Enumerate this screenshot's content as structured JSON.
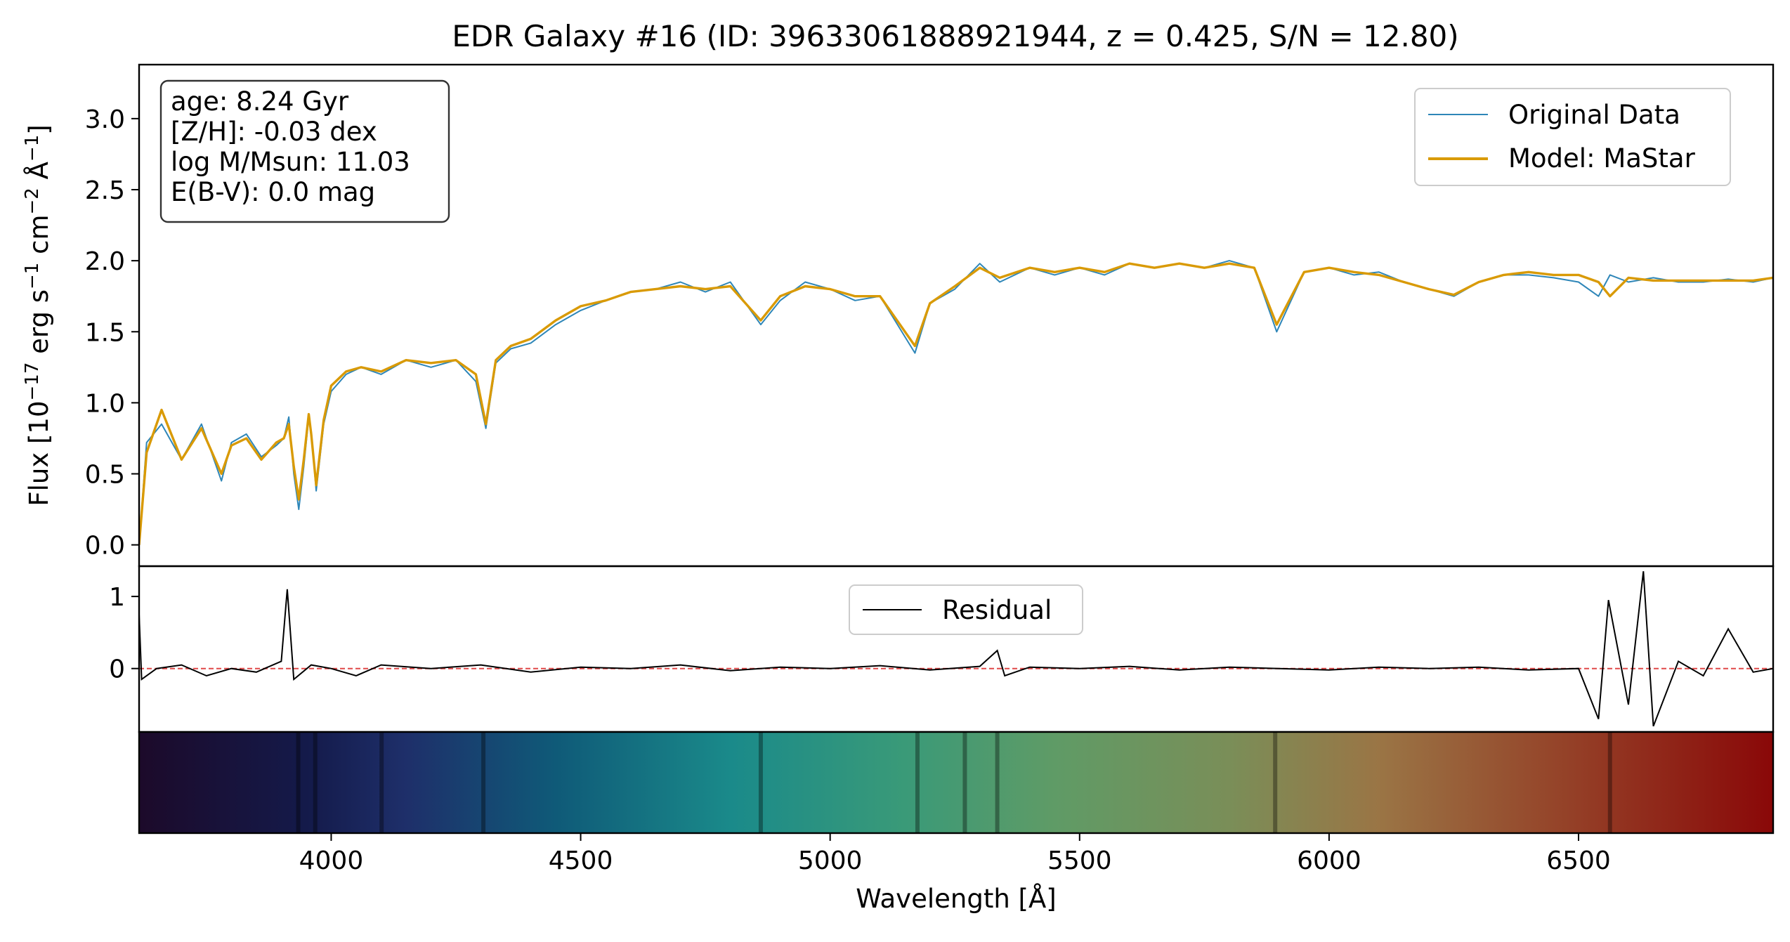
{
  "title": "EDR Galaxy #16 (ID: 39633061888921944, z = 0.425, S/N = 12.80)",
  "info_box": [
    "age: 8.24 Gyr",
    "[Z/H]: -0.03 dex",
    "log M/Msun: 11.03",
    "E(B-V): 0.0 mag"
  ],
  "colors": {
    "data": "#2e86b8",
    "model": "#d99a05",
    "residual": "#000000",
    "zero_line": "#e04848"
  },
  "chart_data": [
    {
      "type": "line",
      "panel": "spectrum",
      "ylabel": "Flux [10^-17 erg s^-1 cm^-2 Å^-1]",
      "ylabel_parts": {
        "pre": "Flux [10",
        "e1": "−17",
        "m1": " erg s",
        "e2": "−1",
        "m2": " cm",
        "e3": "−2",
        "m3": " Å",
        "e4": "−1",
        "post": "]"
      },
      "xlim": [
        3615,
        6890
      ],
      "ylim": [
        -0.15,
        3.38
      ],
      "yticks": [
        0.0,
        0.5,
        1.0,
        1.5,
        2.0,
        2.5,
        3.0
      ],
      "ytick_labels": [
        "0.0",
        "0.5",
        "1.0",
        "1.5",
        "2.0",
        "2.5",
        "3.0"
      ],
      "legend": {
        "position": "upper right",
        "entries": [
          "Original Data",
          "Model: MaStar"
        ]
      },
      "series": [
        {
          "name": "Original Data",
          "x": [
            3615,
            3630,
            3660,
            3700,
            3740,
            3780,
            3800,
            3830,
            3860,
            3890,
            3905,
            3915,
            3925,
            3935,
            3945,
            3955,
            3960,
            3970,
            3985,
            4000,
            4030,
            4060,
            4100,
            4150,
            4200,
            4250,
            4290,
            4310,
            4330,
            4360,
            4400,
            4450,
            4500,
            4550,
            4600,
            4650,
            4700,
            4750,
            4800,
            4861,
            4900,
            4950,
            5000,
            5050,
            5100,
            5170,
            5200,
            5250,
            5300,
            5340,
            5400,
            5450,
            5500,
            5550,
            5600,
            5650,
            5700,
            5750,
            5800,
            5850,
            5895,
            5950,
            6000,
            6050,
            6100,
            6150,
            6200,
            6250,
            6300,
            6350,
            6400,
            6450,
            6500,
            6540,
            6563,
            6600,
            6650,
            6700,
            6750,
            6800,
            6850,
            6890
          ],
          "y": [
            0.0,
            0.72,
            0.85,
            0.6,
            0.85,
            0.45,
            0.72,
            0.78,
            0.62,
            0.7,
            0.75,
            0.9,
            0.5,
            0.25,
            0.55,
            0.9,
            0.8,
            0.38,
            0.85,
            1.08,
            1.2,
            1.25,
            1.2,
            1.3,
            1.25,
            1.3,
            1.15,
            0.82,
            1.28,
            1.38,
            1.42,
            1.55,
            1.65,
            1.72,
            1.78,
            1.8,
            1.85,
            1.78,
            1.85,
            1.55,
            1.72,
            1.85,
            1.8,
            1.72,
            1.75,
            1.35,
            1.7,
            1.8,
            1.98,
            1.85,
            1.95,
            1.9,
            1.95,
            1.9,
            1.98,
            1.95,
            1.98,
            1.95,
            2.0,
            1.95,
            1.5,
            1.92,
            1.95,
            1.9,
            1.92,
            1.85,
            1.8,
            1.75,
            1.85,
            1.9,
            1.9,
            1.88,
            1.85,
            1.75,
            1.9,
            1.85,
            1.88,
            1.85,
            1.85,
            1.87,
            1.85,
            1.88
          ]
        },
        {
          "name": "Model: MaStar",
          "x": [
            3615,
            3630,
            3660,
            3700,
            3740,
            3780,
            3800,
            3830,
            3860,
            3890,
            3905,
            3915,
            3925,
            3935,
            3945,
            3955,
            3960,
            3970,
            3985,
            4000,
            4030,
            4060,
            4100,
            4150,
            4200,
            4250,
            4290,
            4310,
            4330,
            4360,
            4400,
            4450,
            4500,
            4550,
            4600,
            4650,
            4700,
            4750,
            4800,
            4861,
            4900,
            4950,
            5000,
            5050,
            5100,
            5170,
            5200,
            5250,
            5300,
            5340,
            5400,
            5450,
            5500,
            5550,
            5600,
            5650,
            5700,
            5750,
            5800,
            5850,
            5895,
            5950,
            6000,
            6050,
            6100,
            6150,
            6200,
            6250,
            6300,
            6350,
            6400,
            6450,
            6500,
            6540,
            6563,
            6600,
            6650,
            6700,
            6750,
            6800,
            6850,
            6890
          ],
          "y": [
            0.0,
            0.65,
            0.95,
            0.6,
            0.82,
            0.5,
            0.7,
            0.75,
            0.6,
            0.72,
            0.75,
            0.85,
            0.55,
            0.32,
            0.6,
            0.92,
            0.78,
            0.42,
            0.88,
            1.12,
            1.22,
            1.25,
            1.22,
            1.3,
            1.28,
            1.3,
            1.2,
            0.85,
            1.3,
            1.4,
            1.45,
            1.58,
            1.68,
            1.72,
            1.78,
            1.8,
            1.82,
            1.8,
            1.82,
            1.58,
            1.75,
            1.82,
            1.8,
            1.75,
            1.75,
            1.4,
            1.7,
            1.82,
            1.95,
            1.88,
            1.95,
            1.92,
            1.95,
            1.92,
            1.98,
            1.95,
            1.98,
            1.95,
            1.98,
            1.95,
            1.55,
            1.92,
            1.95,
            1.92,
            1.9,
            1.85,
            1.8,
            1.76,
            1.85,
            1.9,
            1.92,
            1.9,
            1.9,
            1.85,
            1.75,
            1.88,
            1.86,
            1.86,
            1.86,
            1.86,
            1.86,
            1.88
          ]
        }
      ]
    },
    {
      "type": "line",
      "panel": "residual",
      "ylim": [
        -0.88,
        1.42
      ],
      "yticks": [
        0,
        1
      ],
      "ytick_labels": [
        "0",
        "1"
      ],
      "legend": {
        "position": "upper center",
        "entries": [
          "Residual"
        ]
      },
      "series": [
        {
          "name": "Residual",
          "x": [
            3615,
            3620,
            3650,
            3700,
            3750,
            3800,
            3850,
            3900,
            3912,
            3925,
            3960,
            4000,
            4050,
            4100,
            4200,
            4300,
            4400,
            4500,
            4600,
            4700,
            4800,
            4900,
            5000,
            5100,
            5200,
            5300,
            5335,
            5350,
            5400,
            5500,
            5600,
            5700,
            5800,
            5900,
            6000,
            6100,
            6200,
            6300,
            6400,
            6500,
            6540,
            6560,
            6600,
            6630,
            6650,
            6700,
            6750,
            6800,
            6850,
            6890
          ],
          "y": [
            0.75,
            -0.15,
            0.0,
            0.05,
            -0.1,
            0.0,
            -0.05,
            0.1,
            1.1,
            -0.15,
            0.05,
            0.0,
            -0.1,
            0.05,
            0.0,
            0.05,
            -0.05,
            0.02,
            0.0,
            0.05,
            -0.03,
            0.02,
            0.0,
            0.04,
            -0.02,
            0.03,
            0.25,
            -0.1,
            0.02,
            0.0,
            0.03,
            -0.02,
            0.02,
            0.0,
            -0.02,
            0.02,
            0.0,
            0.02,
            -0.02,
            0.0,
            -0.7,
            0.95,
            -0.5,
            1.35,
            -0.8,
            0.1,
            -0.1,
            0.55,
            -0.05,
            0.0
          ]
        }
      ]
    },
    {
      "type": "heatmap",
      "panel": "color_strip",
      "xlabel": "Wavelength [Å]",
      "xlim": [
        3615,
        6890
      ],
      "xticks": [
        4000,
        4500,
        5000,
        5500,
        6000,
        6500
      ],
      "xtick_labels": [
        "4000",
        "4500",
        "5000",
        "5500",
        "6000",
        "6500"
      ],
      "colormap_stops": [
        {
          "x": 3615,
          "color": "#1c0a2a"
        },
        {
          "x": 3950,
          "color": "#141a4a"
        },
        {
          "x": 4150,
          "color": "#1e2f6a"
        },
        {
          "x": 4450,
          "color": "#0f5a78"
        },
        {
          "x": 4800,
          "color": "#1a8a8a"
        },
        {
          "x": 5150,
          "color": "#3a9a78"
        },
        {
          "x": 5450,
          "color": "#5f9b66"
        },
        {
          "x": 5800,
          "color": "#7a8e58"
        },
        {
          "x": 6100,
          "color": "#9a7545"
        },
        {
          "x": 6450,
          "color": "#95452a"
        },
        {
          "x": 6890,
          "color": "#8a0808"
        }
      ],
      "absorption_lines": [
        3934,
        3968,
        4101,
        4305,
        4861,
        5175,
        5270,
        5335,
        5892,
        6563
      ]
    }
  ]
}
